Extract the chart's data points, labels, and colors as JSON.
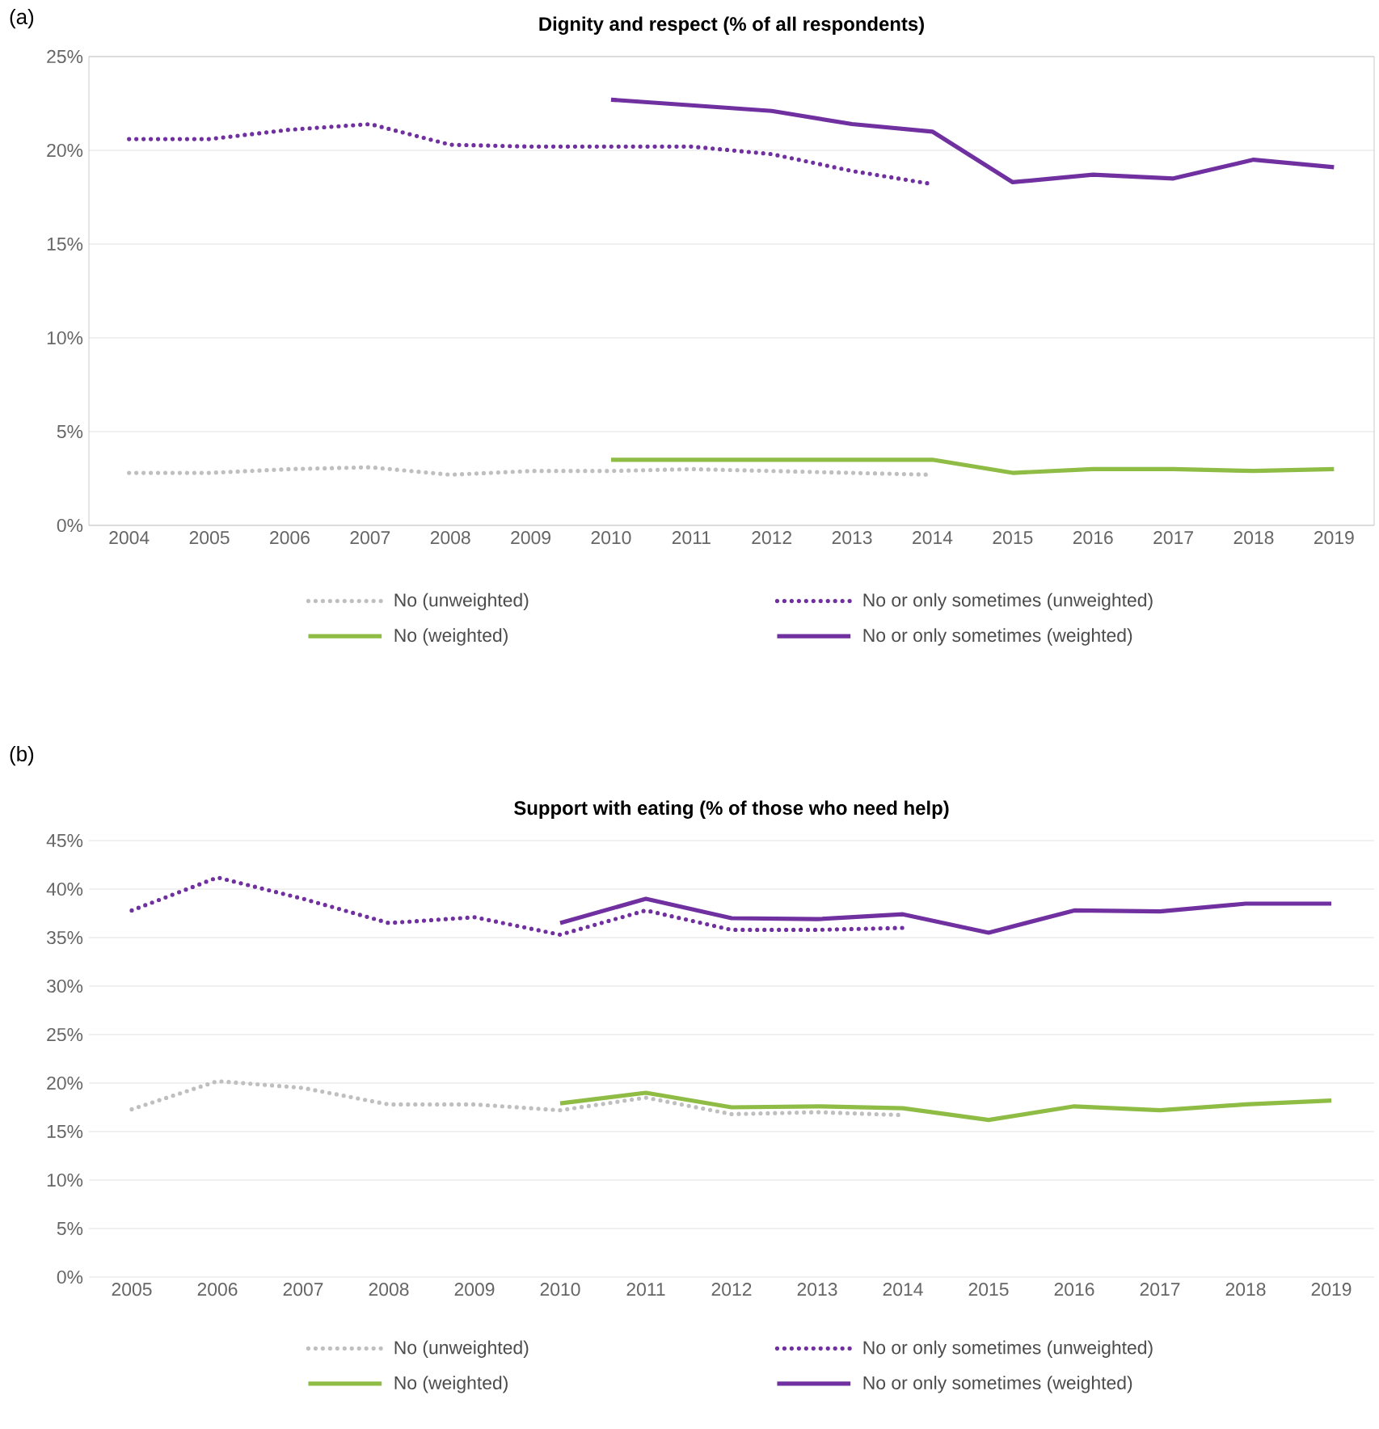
{
  "chart_data": [
    {
      "type": "line",
      "title": "Dignity and respect (% of all respondents)",
      "annotations": [
        "(a)"
      ],
      "categories": [
        "2004",
        "2005",
        "2006",
        "2007",
        "2008",
        "2009",
        "2010",
        "2011",
        "2012",
        "2013",
        "2014",
        "2015",
        "2016",
        "2017",
        "2018",
        "2019"
      ],
      "ylim": [
        0,
        25
      ],
      "yticks": [
        {
          "value": 0,
          "label": "0%"
        },
        {
          "value": 5,
          "label": "5%"
        },
        {
          "value": 10,
          "label": "10%"
        },
        {
          "value": 15,
          "label": "15%"
        },
        {
          "value": 20,
          "label": "20%"
        },
        {
          "value": 25,
          "label": "25%"
        }
      ],
      "grid": "y",
      "legend": "bottom",
      "series": [
        {
          "name": "No (unweighted)",
          "color": "#bfbfbf",
          "line_style": "dotted",
          "values": [
            2.8,
            2.8,
            3.0,
            3.1,
            2.7,
            2.9,
            2.9,
            3.0,
            2.9,
            2.8,
            2.7,
            null,
            null,
            null,
            null,
            null
          ]
        },
        {
          "name": "No or only sometimes (unweighted)",
          "color": "#7030a0",
          "line_style": "dotted",
          "values": [
            20.6,
            20.6,
            21.1,
            21.4,
            20.3,
            20.2,
            20.2,
            20.2,
            19.8,
            18.9,
            18.2,
            null,
            null,
            null,
            null,
            null
          ]
        },
        {
          "name": "No (weighted)",
          "color": "#8fbc45",
          "line_style": "solid",
          "values": [
            null,
            null,
            null,
            null,
            null,
            null,
            3.5,
            3.5,
            3.5,
            3.5,
            3.5,
            2.8,
            3.0,
            3.0,
            2.9,
            3.0
          ]
        },
        {
          "name": "No or only sometimes (weighted)",
          "color": "#7030a0",
          "line_style": "solid",
          "values": [
            null,
            null,
            null,
            null,
            null,
            null,
            22.7,
            22.4,
            22.1,
            21.4,
            21.0,
            18.3,
            18.7,
            18.5,
            19.5,
            19.1
          ]
        }
      ]
    },
    {
      "type": "line",
      "title": "Support with eating (% of those who need help)",
      "annotations": [
        "(b)"
      ],
      "categories": [
        "2005",
        "2006",
        "2007",
        "2008",
        "2009",
        "2010",
        "2011",
        "2012",
        "2013",
        "2014",
        "2015",
        "2016",
        "2017",
        "2018",
        "2019"
      ],
      "ylim": [
        0,
        45
      ],
      "yticks": [
        {
          "value": 0,
          "label": "0%"
        },
        {
          "value": 5,
          "label": "5%"
        },
        {
          "value": 10,
          "label": "10%"
        },
        {
          "value": 15,
          "label": "15%"
        },
        {
          "value": 20,
          "label": "20%"
        },
        {
          "value": 25,
          "label": "25%"
        },
        {
          "value": 30,
          "label": "30%"
        },
        {
          "value": 35,
          "label": "35%"
        },
        {
          "value": 40,
          "label": "40%"
        },
        {
          "value": 45,
          "label": "45%"
        }
      ],
      "grid": "y",
      "legend": "bottom",
      "series": [
        {
          "name": "No (unweighted)",
          "color": "#bfbfbf",
          "line_style": "dotted",
          "values": [
            17.3,
            20.2,
            19.5,
            17.8,
            17.8,
            17.2,
            18.5,
            16.8,
            17.0,
            16.7,
            null,
            null,
            null,
            null,
            null
          ]
        },
        {
          "name": "No or only sometimes (unweighted)",
          "color": "#7030a0",
          "line_style": "dotted",
          "values": [
            37.8,
            41.2,
            39.0,
            36.5,
            37.1,
            35.3,
            37.8,
            35.8,
            35.8,
            36.0,
            null,
            null,
            null,
            null,
            null
          ]
        },
        {
          "name": "No (weighted)",
          "color": "#8fbc45",
          "line_style": "solid",
          "values": [
            null,
            null,
            null,
            null,
            null,
            17.9,
            19.0,
            17.5,
            17.6,
            17.4,
            16.2,
            17.6,
            17.2,
            17.8,
            18.2
          ]
        },
        {
          "name": "No or only sometimes (weighted)",
          "color": "#7030a0",
          "line_style": "solid",
          "values": [
            null,
            null,
            null,
            null,
            null,
            36.5,
            39.0,
            37.0,
            36.9,
            37.4,
            35.5,
            37.8,
            37.7,
            38.5,
            38.5
          ]
        }
      ]
    }
  ]
}
